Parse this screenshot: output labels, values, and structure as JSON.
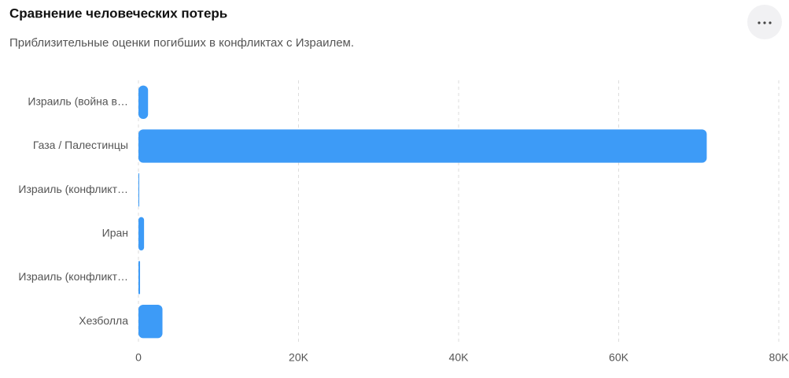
{
  "chart_data": {
    "type": "bar",
    "orientation": "horizontal",
    "title": "Сравнение человеческих потерь",
    "subtitle": "Приблизительные оценки погибших в конфликтах с Израилем.",
    "categories": [
      "Израиль (война в…",
      "Газа / Палестинцы",
      "Израиль (конфликт…",
      "Иран",
      "Израиль (конфликт…",
      "Хезболла"
    ],
    "values": [
      1200,
      71000,
      100,
      700,
      200,
      3000
    ],
    "color": "#3d9bf7",
    "xlim": [
      0,
      80000
    ],
    "xticks": [
      0,
      {
        "value": 20000,
        "label": "20K"
      },
      {
        "value": 40000,
        "label": "40K"
      },
      {
        "value": 60000,
        "label": "60K"
      },
      {
        "value": 80000,
        "label": "80K"
      }
    ],
    "grid": true
  }
}
